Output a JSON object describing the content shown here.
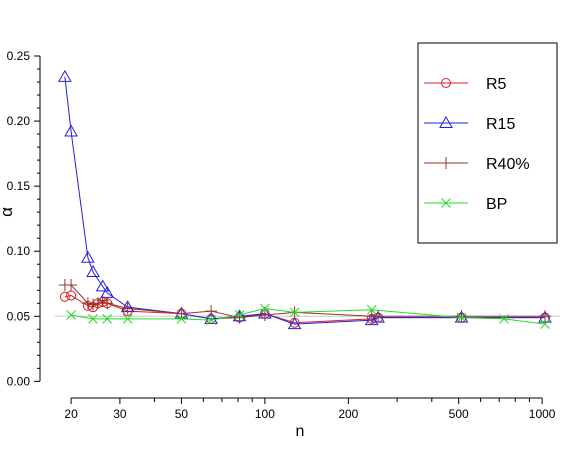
{
  "chart_data": {
    "type": "line",
    "title": "",
    "xlabel": "n",
    "ylabel": "α",
    "xscale": "log",
    "xlim": [
      17.5,
      1050
    ],
    "ylim": [
      -0.0005,
      0.25
    ],
    "reference_line": {
      "y": 0.05,
      "color": "#c8c8c8"
    },
    "x_ticks_labeled": [
      20,
      30,
      50,
      100,
      200,
      500,
      1000
    ],
    "x_tick_labels": [
      "20",
      "30",
      "50",
      "100",
      "200",
      "500",
      "1000"
    ],
    "x_ticks_minor": [
      40,
      60,
      70,
      80,
      90,
      300,
      400,
      600,
      700,
      800,
      900
    ],
    "y_ticks": [
      0.0,
      0.05,
      0.1,
      0.15,
      0.2,
      0.25
    ],
    "y_tick_labels": [
      "0.00",
      "0.05",
      "0.10",
      "0.15",
      "0.20",
      "0.25"
    ],
    "y_ticks_minor": [
      0.01,
      0.02,
      0.03,
      0.04,
      0.06,
      0.07,
      0.08,
      0.09,
      0.11,
      0.12,
      0.13,
      0.14,
      0.16,
      0.17,
      0.18,
      0.19,
      0.21,
      0.22,
      0.23,
      0.24
    ],
    "legend_position": "top-right",
    "series": [
      {
        "name": "R5",
        "color": "#dd2222",
        "marker": "circle",
        "x": [
          19,
          20,
          23,
          24,
          25,
          26,
          27,
          32,
          50,
          64,
          81,
          100,
          128,
          243,
          256,
          512,
          1024
        ],
        "y": [
          0.065,
          0.066,
          0.058,
          0.057,
          0.06,
          0.061,
          0.06,
          0.054,
          0.052,
          0.048,
          0.049,
          0.052,
          0.045,
          0.048,
          0.049,
          0.049,
          0.049
        ]
      },
      {
        "name": "R15",
        "color": "#2222dd",
        "marker": "triangle",
        "x": [
          19,
          20,
          23,
          24,
          26,
          27,
          32,
          50,
          64,
          81,
          100,
          128,
          243,
          256,
          512,
          1024
        ],
        "y": [
          0.234,
          0.192,
          0.095,
          0.084,
          0.073,
          0.068,
          0.057,
          0.052,
          0.048,
          0.05,
          0.052,
          0.044,
          0.047,
          0.049,
          0.049,
          0.049
        ]
      },
      {
        "name": "R40%",
        "color": "#993333",
        "marker": "plus",
        "x": [
          19,
          20,
          23,
          24,
          25,
          26,
          27,
          32,
          50,
          64,
          81,
          100,
          128,
          243,
          256,
          512,
          1024
        ],
        "y": [
          0.074,
          0.074,
          0.06,
          0.059,
          0.06,
          0.062,
          0.06,
          0.056,
          0.052,
          0.054,
          0.049,
          0.051,
          0.053,
          0.05,
          0.05,
          0.05,
          0.05
        ]
      },
      {
        "name": "BP",
        "color": "#22dd22",
        "marker": "x",
        "x": [
          20,
          24,
          27,
          32,
          50,
          64,
          81,
          100,
          128,
          243,
          512,
          729,
          1024
        ],
        "y": [
          0.051,
          0.048,
          0.048,
          0.048,
          0.048,
          0.047,
          0.051,
          0.056,
          0.053,
          0.055,
          0.049,
          0.048,
          0.044
        ]
      }
    ]
  }
}
